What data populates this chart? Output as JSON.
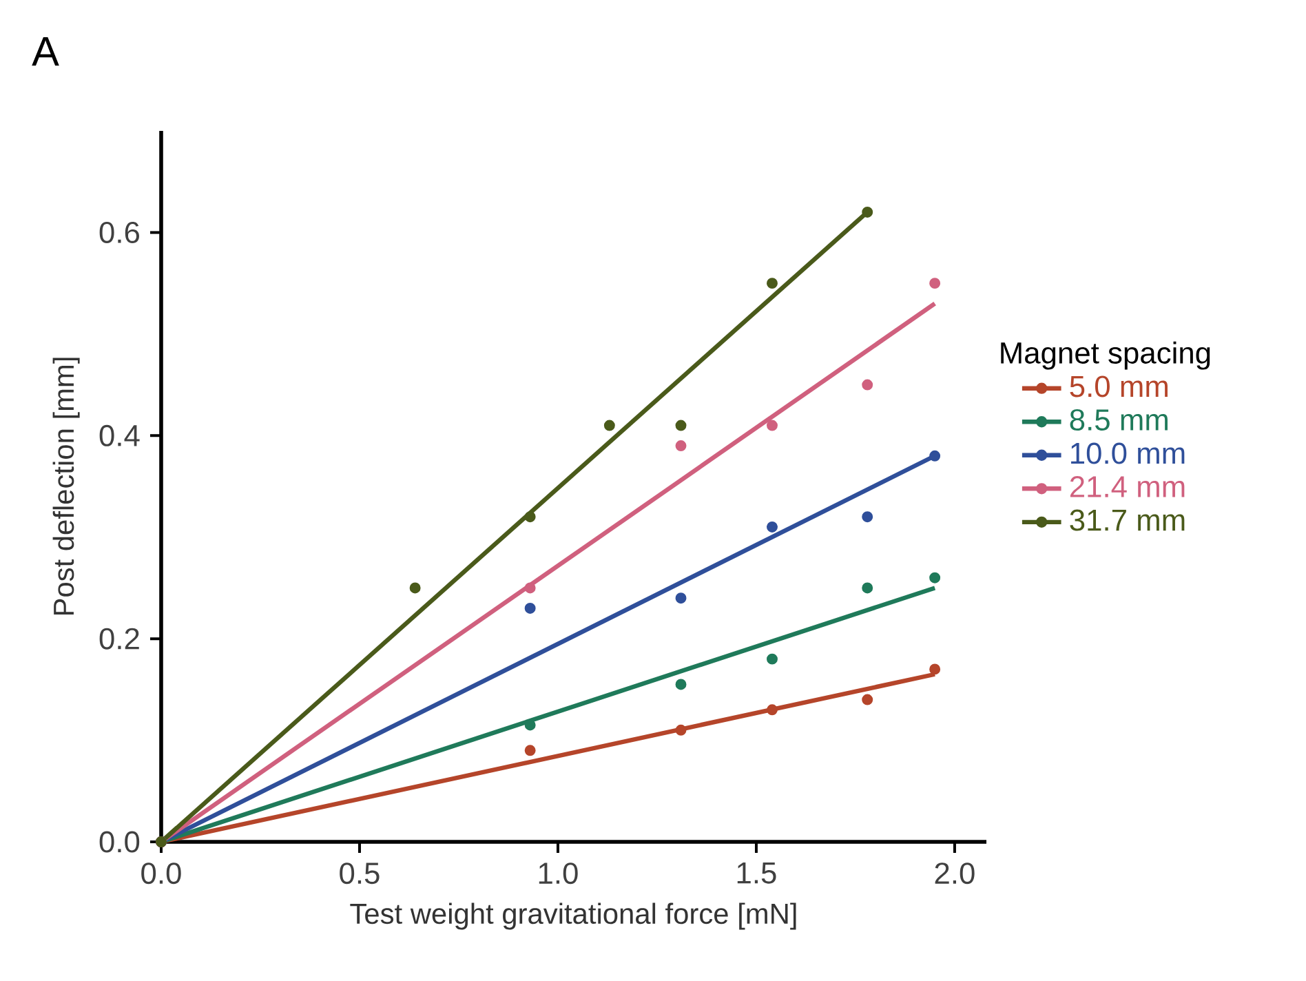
{
  "chart_data": {
    "type": "scatter",
    "xlabel": "Test weight gravitational force [mN]",
    "ylabel": "Post deflection [mm]",
    "legend_title": "Magnet spacing",
    "annotations": [
      "A"
    ],
    "xlim": [
      0,
      2.08
    ],
    "ylim": [
      0,
      0.7
    ],
    "xticks": [
      {
        "value": 0,
        "label": "0.0"
      },
      0.5,
      {
        "value": 1,
        "label": "1.0"
      },
      1.5,
      {
        "value": 2,
        "label": "2.0"
      }
    ],
    "yticks": [
      {
        "value": 0,
        "label": "0.0"
      },
      0.2,
      0.4,
      0.6
    ],
    "grid": false,
    "legend": "right",
    "marker": "circle",
    "series": [
      {
        "name": "5.0 mm",
        "color": "#b5452a",
        "x": [
          0,
          0.93,
          1.31,
          1.54,
          1.78,
          1.95
        ],
        "values": [
          0,
          0.09,
          0.11,
          0.13,
          0.14,
          0.17
        ]
      },
      {
        "name": "8.5 mm",
        "color": "#1f7a5a",
        "x": [
          0,
          0.93,
          1.31,
          1.54,
          1.78,
          1.95
        ],
        "values": [
          0,
          0.115,
          0.155,
          0.18,
          0.25,
          0.26
        ]
      },
      {
        "name": "10.0 mm",
        "color": "#2f4f9a",
        "x": [
          0,
          0.93,
          1.31,
          1.54,
          1.78,
          1.95
        ],
        "values": [
          0,
          0.23,
          0.24,
          0.31,
          0.32,
          0.38
        ]
      },
      {
        "name": "21.4 mm",
        "color": "#d0607e",
        "x": [
          0,
          0.93,
          1.31,
          1.54,
          1.78,
          1.95
        ],
        "values": [
          0,
          0.25,
          0.39,
          0.41,
          0.45,
          0.55
        ]
      },
      {
        "name": "31.7 mm",
        "color": "#4a5a1a",
        "x": [
          0,
          0.64,
          0.93,
          1.13,
          1.31,
          1.54,
          1.78
        ],
        "values": [
          0,
          0.25,
          0.32,
          0.41,
          0.41,
          0.55,
          0.62
        ]
      },
      {
        "type": "line",
        "marker": "none",
        "color": "#b5452a",
        "x": [
          0,
          1.95
        ],
        "values": [
          0,
          0.165
        ]
      },
      {
        "type": "line",
        "marker": "none",
        "color": "#1f7a5a",
        "x": [
          0,
          1.95
        ],
        "values": [
          0,
          0.25
        ]
      },
      {
        "type": "line",
        "marker": "none",
        "color": "#2f4f9a",
        "x": [
          0,
          1.95
        ],
        "values": [
          0,
          0.38
        ]
      },
      {
        "type": "line",
        "marker": "none",
        "color": "#d0607e",
        "x": [
          0,
          1.95
        ],
        "values": [
          0,
          0.53
        ]
      },
      {
        "type": "line",
        "marker": "none",
        "color": "#4a5a1a",
        "x": [
          0,
          1.78
        ],
        "values": [
          0,
          0.62
        ]
      }
    ]
  }
}
